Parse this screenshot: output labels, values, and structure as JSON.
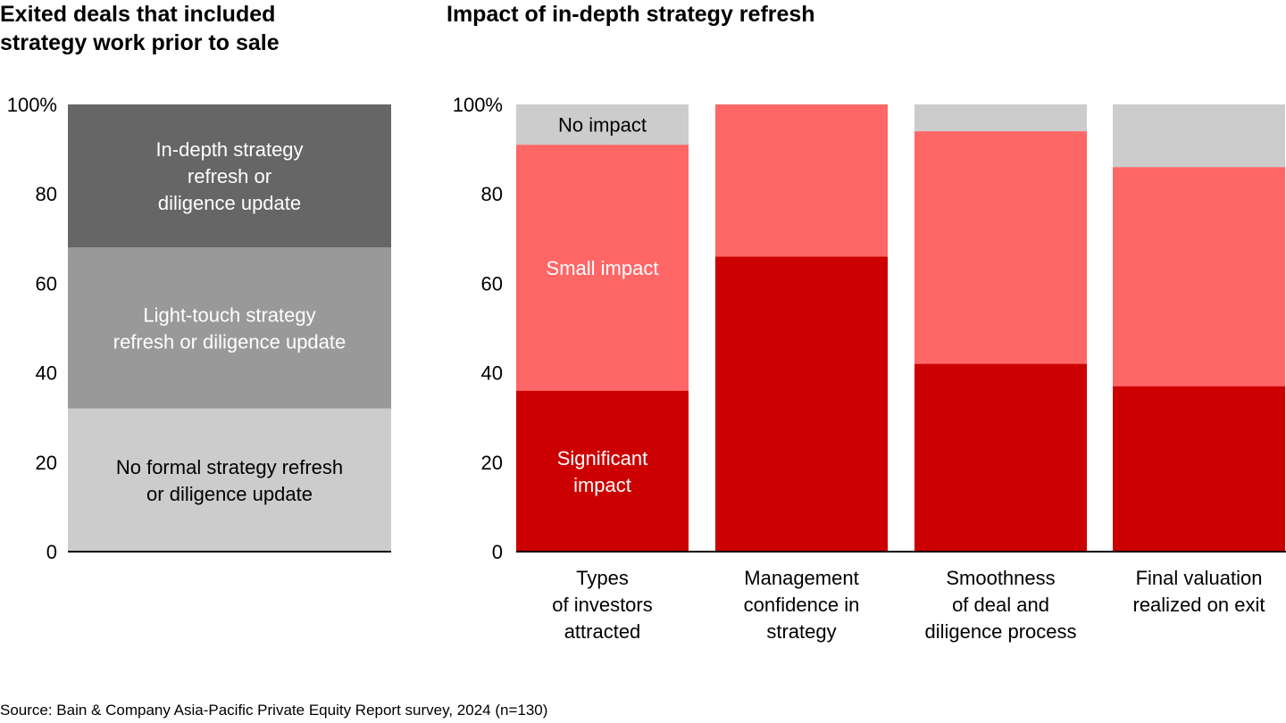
{
  "chart_data": [
    {
      "type": "bar",
      "stacked": true,
      "title": "Exited deals that included strategy work prior to sale",
      "title_lines": [
        "Exited deals that included",
        "strategy work prior to sale"
      ],
      "ylim": [
        0,
        100
      ],
      "yticks": [
        "0",
        "20",
        "40",
        "60",
        "80",
        "100%"
      ],
      "categories": [
        ""
      ],
      "series": [
        {
          "name": "No formal strategy refresh or diligence update",
          "label_lines": [
            "No formal strategy refresh",
            "or diligence update"
          ],
          "values": [
            32
          ],
          "color": "#cccccc",
          "text_color": "#000000"
        },
        {
          "name": "Light-touch strategy refresh or diligence update",
          "label_lines": [
            "Light-touch strategy",
            "refresh or diligence update"
          ],
          "values": [
            36
          ],
          "color": "#999999",
          "text_color": "#ffffff"
        },
        {
          "name": "In-depth strategy refresh or diligence update",
          "label_lines": [
            "In-depth strategy",
            "refresh or",
            "diligence update"
          ],
          "values": [
            32
          ],
          "color": "#666666",
          "text_color": "#ffffff"
        }
      ]
    },
    {
      "type": "bar",
      "stacked": true,
      "title": "Impact of in-depth strategy refresh",
      "ylim": [
        0,
        100
      ],
      "yticks": [
        "0",
        "20",
        "40",
        "60",
        "80",
        "100%"
      ],
      "categories": [
        [
          "Types",
          "of investors",
          "attracted"
        ],
        [
          "Management",
          "confidence in",
          "strategy"
        ],
        [
          "Smoothness",
          "of deal and",
          "diligence process"
        ],
        [
          "Final valuation",
          "realized on exit"
        ]
      ],
      "series": [
        {
          "name": "Significant impact",
          "label_lines": [
            "Significant",
            "impact"
          ],
          "values": [
            36,
            66,
            42,
            37
          ],
          "color": "#cc0000",
          "text_color": "#ffffff"
        },
        {
          "name": "Small impact",
          "label_lines": [
            "Small impact"
          ],
          "values": [
            55,
            34,
            52,
            49
          ],
          "color": "#ff6666",
          "text_color": "#ffffff"
        },
        {
          "name": "No impact",
          "label_lines": [
            "No impact"
          ],
          "values": [
            9,
            0,
            6,
            14
          ],
          "color": "#cccccc",
          "text_color": "#000000"
        }
      ]
    }
  ],
  "source": "Source: Bain & Company Asia-Pacific Private Equity Report survey, 2024 (n=130)"
}
